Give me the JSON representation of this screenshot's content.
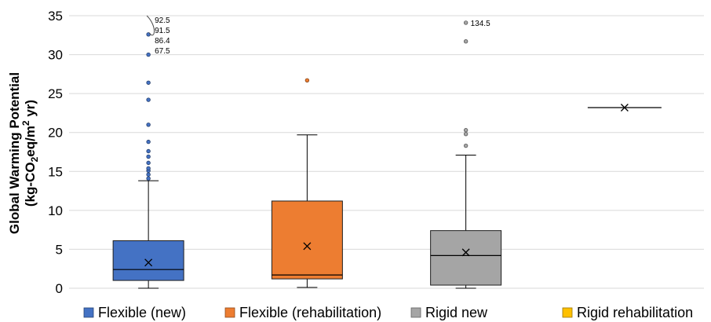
{
  "chart_data": {
    "type": "box",
    "ylabel_line1": "Global Warming Potential",
    "ylabel_line2": {
      "pre": "(kg-CO",
      "sub": "2",
      "mid": "eq/m",
      "sup": "2",
      "post": " yr)"
    },
    "ylim": [
      0,
      35
    ],
    "yticks": [
      0,
      5,
      10,
      15,
      20,
      25,
      30,
      35
    ],
    "grid": true,
    "legend_position": "bottom",
    "series": [
      {
        "name": "Flexible (new)",
        "color": "#4472c4",
        "min": 0,
        "q1": 1.0,
        "median": 2.4,
        "q3": 6.1,
        "max": 13.8,
        "mean": 3.3,
        "outliers": [
          14.1,
          14.6,
          15.1,
          15.4,
          16.1,
          16.9,
          17.6,
          18.8,
          21.0,
          24.2,
          26.4,
          30.0,
          32.6
        ],
        "outlier_labels": [
          "92.5",
          "91.5",
          "86.4",
          "67.5"
        ]
      },
      {
        "name": "Flexible (rehabilitation)",
        "color": "#ed7d31",
        "min": 0.1,
        "q1": 1.2,
        "median": 1.7,
        "q3": 11.2,
        "max": 19.7,
        "mean": 5.4,
        "outliers": [
          26.7
        ],
        "outlier_labels": []
      },
      {
        "name": "Rigid new",
        "color": "#a5a5a5",
        "min": 0,
        "q1": 0.4,
        "median": 4.2,
        "q3": 7.4,
        "max": 17.1,
        "mean": 4.6,
        "outliers": [
          18.3,
          19.8,
          20.3,
          31.7,
          34.1
        ],
        "outlier_labels": [
          "134.5"
        ]
      },
      {
        "name": "Rigid rehabilitation",
        "color": "#ffc000",
        "min": 23.2,
        "q1": 23.2,
        "median": 23.2,
        "q3": 23.2,
        "max": 23.2,
        "mean": 23.2,
        "outliers": [],
        "outlier_labels": []
      }
    ]
  }
}
